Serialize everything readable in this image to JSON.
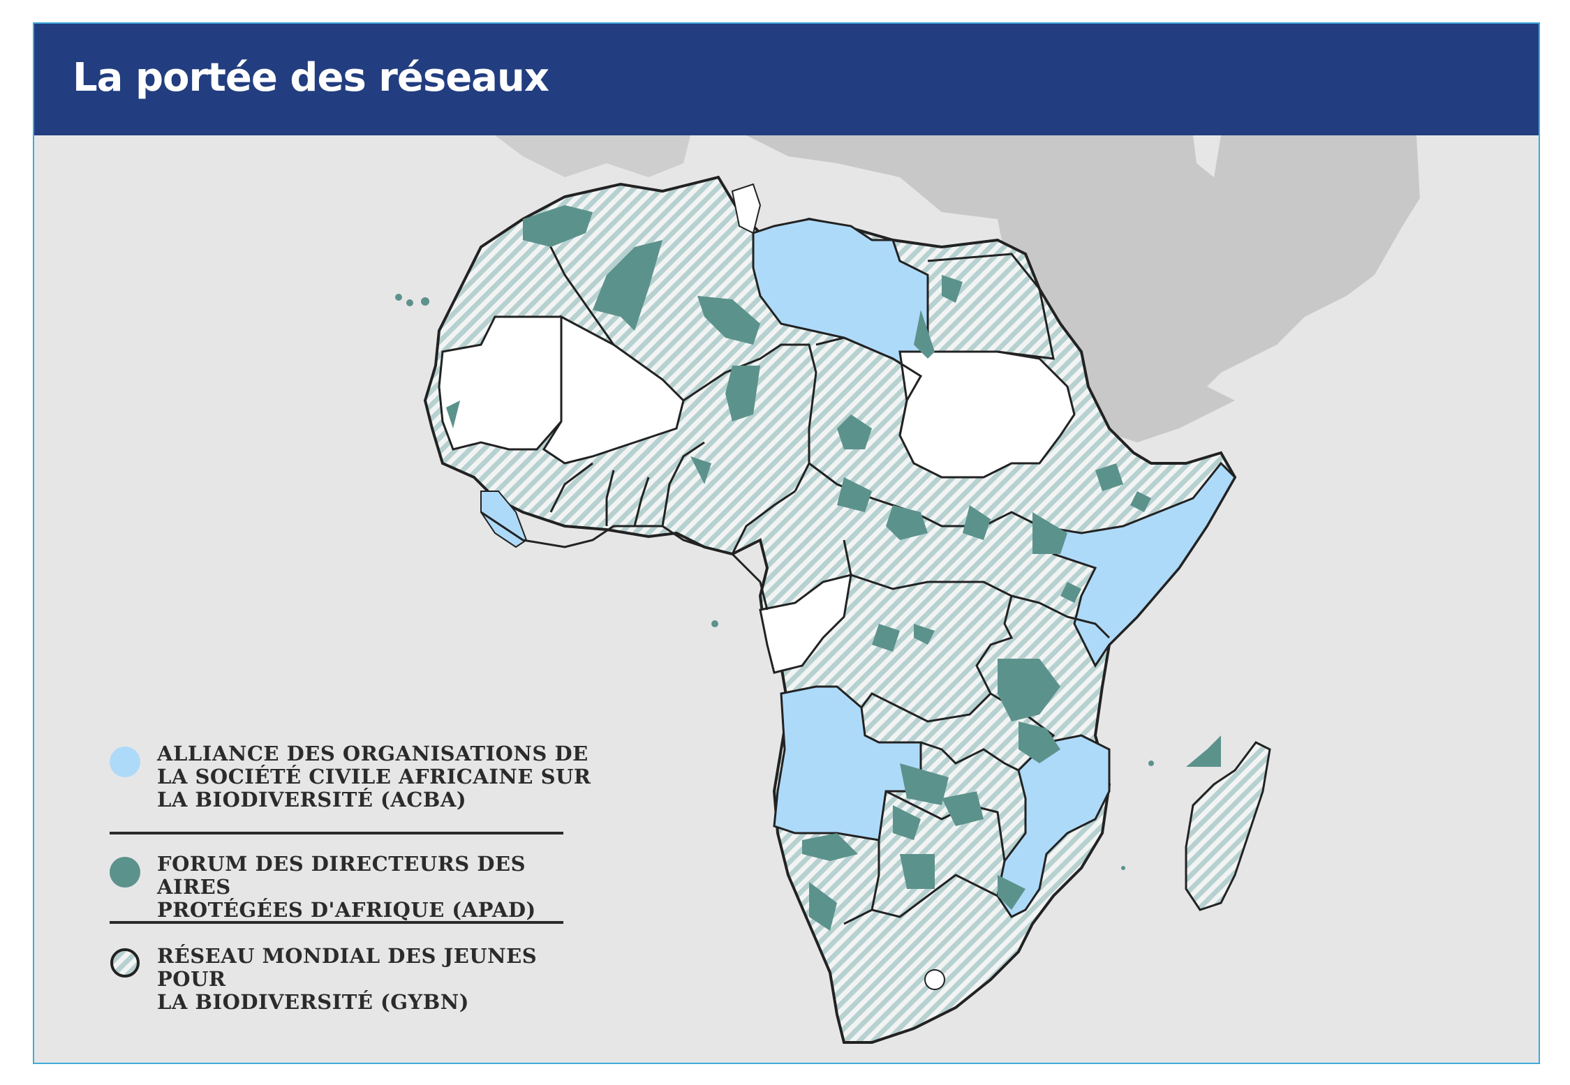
{
  "title": "La portée des réseaux",
  "colors": {
    "header": "#223e80",
    "background": "#e7e6e7",
    "land_outside": "#c9c8c9",
    "acba": "#aedaf9",
    "apad": "#5c928c",
    "gybn_stripe": "#b7d0d0",
    "border": "#222222"
  },
  "legend": [
    {
      "key": "acba",
      "label_lines": [
        "ALLIANCE DES ORGANISATIONS DE",
        "LA SOCIÉTÉ CIVILE AFRICAINE SUR",
        "LA BIODIVERSITÉ (ACBA)"
      ]
    },
    {
      "key": "apad",
      "label_lines": [
        "FORUM DES DIRECTEURS DES AIRES",
        "PROTÉGÉES D'AFRIQUE (APAD)"
      ]
    },
    {
      "key": "gybn",
      "label_lines": [
        "RÉSEAU MONDIAL DES JEUNES POUR",
        "LA BIODIVERSITÉ (GYBN)"
      ]
    }
  ]
}
